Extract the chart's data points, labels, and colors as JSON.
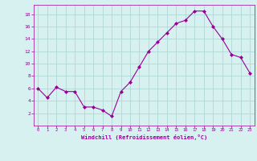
{
  "x": [
    0,
    1,
    2,
    3,
    4,
    5,
    6,
    7,
    8,
    9,
    10,
    11,
    12,
    13,
    14,
    15,
    16,
    17,
    18,
    19,
    20,
    21,
    22,
    23
  ],
  "y": [
    6.0,
    4.5,
    6.2,
    5.5,
    5.5,
    3.0,
    3.0,
    2.5,
    1.5,
    5.5,
    7.0,
    9.5,
    12.0,
    13.5,
    15.0,
    16.5,
    17.0,
    18.5,
    18.5,
    16.0,
    14.0,
    11.5,
    11.0,
    8.5
  ],
  "line_color": "#990099",
  "marker_color": "#990099",
  "bg_color": "#d7f0f0",
  "grid_color": "#b0d8d8",
  "xlabel": "Windchill (Refroidissement éolien,°C)",
  "xlabel_color": "#990099",
  "tick_color": "#990099",
  "ylim": [
    0,
    19.5
  ],
  "xlim": [
    -0.5,
    23.5
  ],
  "yticks": [
    2,
    4,
    6,
    8,
    10,
    12,
    14,
    16,
    18
  ],
  "xticks": [
    0,
    1,
    2,
    3,
    4,
    5,
    6,
    7,
    8,
    9,
    10,
    11,
    12,
    13,
    14,
    15,
    16,
    17,
    18,
    19,
    20,
    21,
    22,
    23
  ]
}
